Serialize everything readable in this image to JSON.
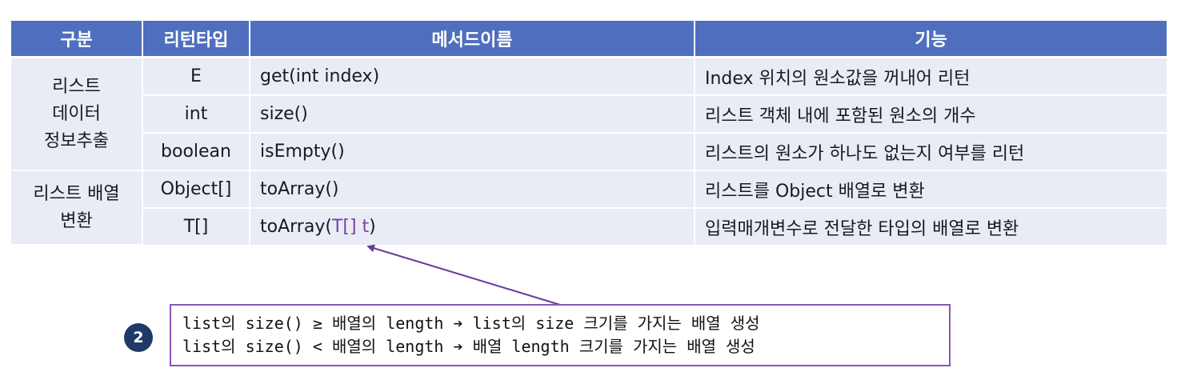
{
  "headers": [
    "구분",
    "리턴타입",
    "메서드이름",
    "기능"
  ],
  "groups": [
    {
      "label": "리스트\n데이터\n정보추출",
      "rows": [
        {
          "type": "E",
          "method": "get(int index)",
          "desc": "Index 위치의 원소값을 꺼내어 리턴"
        },
        {
          "type": "int",
          "method": "size()",
          "desc": "리스트 객체 내에 포함된 원소의 개수"
        },
        {
          "type": "boolean",
          "method": "isEmpty()",
          "desc": "리스트의 원소가 하나도 없는지 여부를 리턴"
        }
      ]
    },
    {
      "label": "리스트 배열\n변환",
      "rows": [
        {
          "type": "Object[]",
          "method": "toArray()",
          "desc": "리스트를 Object 배열로 변환"
        },
        {
          "type": "T[]",
          "method_prefix": "toArray(",
          "method_param": "T[] t",
          "method_suffix": ")",
          "desc": "입력매개변수로 전달한 타입의 배열로 변환"
        }
      ]
    }
  ],
  "badge": "2",
  "note_lines": [
    "list의 size() ≥ 배열의 length ➔ list의 size 크기를 가지는 배열 생성",
    "list의 size() < 배열의 length ➔ 배열 length 크기를 가지는 배열 생성"
  ],
  "colors": {
    "header_bg": "#4f6fbe",
    "cell_bg": "#e9ecf5",
    "accent": "#7a3fa6",
    "badge_bg": "#1f3a68"
  }
}
